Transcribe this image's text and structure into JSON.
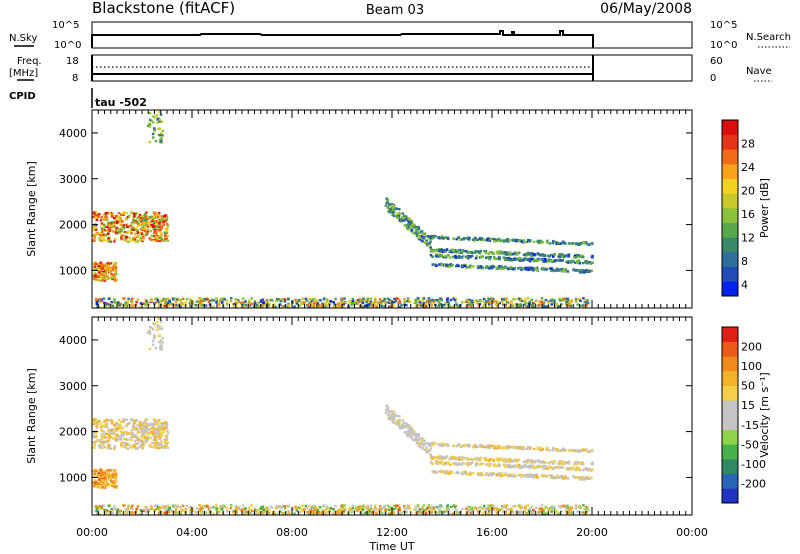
{
  "header": {
    "station": "Blackstone (fitACF)",
    "beam": "Beam 03",
    "date": "06/May/2008"
  },
  "top_panel": {
    "left_label": "N.Sky",
    "left_ticks": [
      "10^5",
      "10^0"
    ],
    "right_ticks": [
      "10^5",
      "10^0"
    ],
    "right_label": "N.Search"
  },
  "freq_panel": {
    "left_label_line1": "Freq.",
    "left_label_line2": "[MHz]",
    "left_ticks": [
      "18",
      "8"
    ],
    "right_ticks": [
      "60",
      "0"
    ],
    "right_label": "Nave"
  },
  "cpid": {
    "label": "CPID",
    "value": "tau -502"
  },
  "chart_data": [
    {
      "type": "heatmap",
      "name": "power",
      "ylabel": "Slant Range [km]",
      "yticks": [
        "4000",
        "3000",
        "2000",
        "1000"
      ],
      "ylim": [
        180,
        4500
      ],
      "colorbar_label": "Power [dB]",
      "colorbar_ticks": [
        "28",
        "24",
        "20",
        "16",
        "12",
        "8",
        "4"
      ],
      "colors": [
        "#0022ee",
        "#224db8",
        "#2f6f9a",
        "#3a8a6a",
        "#57a84a",
        "#8cc23a",
        "#c9c82a",
        "#f2d21c",
        "#f7a21a",
        "#f26b18",
        "#e53417",
        "#d90f0f"
      ]
    },
    {
      "type": "heatmap",
      "name": "velocity",
      "ylabel": "Slant Range [km]",
      "yticks": [
        "4000",
        "3000",
        "2000",
        "1000"
      ],
      "ylim": [
        180,
        4500
      ],
      "colorbar_label": "Velocity [m s⁻¹]",
      "colorbar_ticks": [
        "200",
        "100",
        "50",
        "15",
        "-15",
        "-50",
        "-100",
        "-200"
      ],
      "colors": [
        "#2032c0",
        "#2a66b8",
        "#2e8a62",
        "#48b04a",
        "#8fd34a",
        "#c4c4c4",
        "#c4c4c4",
        "#f5cf4a",
        "#f2b22a",
        "#f08a1a",
        "#ec5a18",
        "#e02014"
      ]
    }
  ],
  "x_axis": {
    "ticks": [
      "00:00",
      "04:00",
      "08:00",
      "12:00",
      "16:00",
      "20:00",
      "00:00"
    ],
    "xlabel": "Time UT",
    "xlim_hours": [
      0,
      24
    ]
  }
}
